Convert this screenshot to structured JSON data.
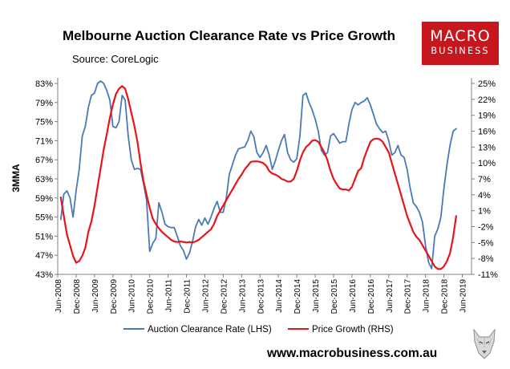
{
  "chart_data": {
    "type": "line",
    "title": "Melbourne Auction Clearance Rate vs Price Growth",
    "subtitle": "Source: CoreLogic",
    "ylabel_left": "3MMA",
    "left_axis": {
      "ylim": [
        43,
        85
      ],
      "ticks": [
        "83%",
        "79%",
        "75%",
        "71%",
        "67%",
        "63%",
        "59%",
        "55%",
        "51%",
        "47%",
        "43%"
      ],
      "tick_values": [
        83,
        79,
        75,
        71,
        67,
        63,
        59,
        55,
        51,
        47,
        43
      ]
    },
    "right_axis": {
      "ylim": [
        -11,
        27
      ],
      "ticks": [
        "25%",
        "22%",
        "19%",
        "16%",
        "13%",
        "10%",
        "7%",
        "4%",
        "1%",
        "-2%",
        "-5%",
        "-8%",
        "-11%"
      ],
      "tick_values": [
        25,
        22,
        19,
        16,
        13,
        10,
        7,
        4,
        1,
        -2,
        -5,
        -8,
        -11
      ]
    },
    "x_ticks": [
      "Jun-2008",
      "Dec-2008",
      "Jun-2009",
      "Dec-2009",
      "Jun-2010",
      "Dec-2010",
      "Jun-2011",
      "Dec-2011",
      "Jun-2012",
      "Dec-2012",
      "Jun-2013",
      "Dec-2013",
      "Jun-2014",
      "Dec-2014",
      "Jun-2015",
      "Dec-2015",
      "Jun-2016",
      "Dec-2016",
      "Jun-2017",
      "Dec-2017",
      "Jun-2018",
      "Dec-2018",
      "Jun-2019"
    ],
    "series": [
      {
        "name": "Auction Clearance Rate (LHS)",
        "axis": "left",
        "color": "#4a7ab5",
        "points": [
          [
            1,
            54.5
          ],
          [
            2,
            59.8
          ],
          [
            3,
            60.5
          ],
          [
            4,
            59.0
          ],
          [
            5,
            55.0
          ],
          [
            6,
            60.5
          ],
          [
            7,
            65.0
          ],
          [
            8,
            72.0
          ],
          [
            9,
            74.0
          ],
          [
            10,
            78.0
          ],
          [
            11,
            80.5
          ],
          [
            12,
            81.0
          ],
          [
            13,
            83.0
          ],
          [
            14,
            83.5
          ],
          [
            15,
            83.0
          ],
          [
            16,
            81.5
          ],
          [
            17,
            79.5
          ],
          [
            18,
            74.0
          ],
          [
            19,
            73.7
          ],
          [
            20,
            75.0
          ],
          [
            21,
            80.5
          ],
          [
            22,
            79.5
          ],
          [
            23,
            72.0
          ],
          [
            24,
            67.0
          ],
          [
            25,
            65.0
          ],
          [
            26,
            65.2
          ],
          [
            27,
            65.0
          ],
          [
            28,
            62.0
          ],
          [
            29,
            58.5
          ],
          [
            30,
            47.8
          ],
          [
            31,
            49.5
          ],
          [
            32,
            50.5
          ],
          [
            33,
            58.0
          ],
          [
            34,
            56.0
          ],
          [
            35,
            53.5
          ],
          [
            36,
            53.0
          ],
          [
            37,
            52.8
          ],
          [
            38,
            52.8
          ],
          [
            39,
            51.0
          ],
          [
            40,
            49.0
          ],
          [
            41,
            48.0
          ],
          [
            42,
            46.2
          ],
          [
            43,
            47.5
          ],
          [
            44,
            50.0
          ],
          [
            45,
            53.0
          ],
          [
            46,
            54.5
          ],
          [
            47,
            53.3
          ],
          [
            48,
            54.8
          ],
          [
            49,
            53.5
          ],
          [
            50,
            55.0
          ],
          [
            51,
            56.8
          ],
          [
            52,
            58.3
          ],
          [
            53,
            56.0
          ],
          [
            54,
            56.0
          ],
          [
            55,
            59.0
          ],
          [
            56,
            64.0
          ],
          [
            57,
            66.0
          ],
          [
            58,
            68.0
          ],
          [
            59,
            69.3
          ],
          [
            60,
            69.5
          ],
          [
            61,
            69.7
          ],
          [
            62,
            71.0
          ],
          [
            63,
            73.0
          ],
          [
            64,
            71.8
          ],
          [
            65,
            68.5
          ],
          [
            66,
            67.5
          ],
          [
            67,
            68.5
          ],
          [
            68,
            70.0
          ],
          [
            69,
            68.0
          ],
          [
            70,
            65.0
          ],
          [
            71,
            66.8
          ],
          [
            72,
            69.0
          ],
          [
            73,
            71.0
          ],
          [
            74,
            72.3
          ],
          [
            75,
            68.5
          ],
          [
            76,
            67.0
          ],
          [
            77,
            66.5
          ],
          [
            78,
            67.2
          ],
          [
            79,
            72.0
          ],
          [
            80,
            80.5
          ],
          [
            81,
            81.0
          ],
          [
            82,
            79.0
          ],
          [
            83,
            77.5
          ],
          [
            84,
            75.5
          ],
          [
            85,
            73.0
          ],
          [
            86,
            69.0
          ],
          [
            87,
            68.0
          ],
          [
            88,
            68.5
          ],
          [
            89,
            72.0
          ],
          [
            90,
            72.5
          ],
          [
            91,
            71.5
          ],
          [
            92,
            70.5
          ],
          [
            93,
            70.8
          ],
          [
            94,
            70.8
          ],
          [
            95,
            74.5
          ],
          [
            96,
            77.5
          ],
          [
            97,
            79.0
          ],
          [
            98,
            78.5
          ],
          [
            99,
            79.0
          ],
          [
            100,
            79.3
          ],
          [
            101,
            80.0
          ],
          [
            102,
            78.5
          ],
          [
            103,
            76.5
          ],
          [
            104,
            74.5
          ],
          [
            105,
            73.5
          ],
          [
            106,
            72.7
          ],
          [
            107,
            73.0
          ],
          [
            108,
            71.0
          ],
          [
            109,
            68.0
          ],
          [
            110,
            68.5
          ],
          [
            111,
            70.0
          ],
          [
            112,
            68.0
          ],
          [
            113,
            67.5
          ],
          [
            114,
            65.0
          ],
          [
            115,
            61.0
          ],
          [
            116,
            58.0
          ],
          [
            117,
            57.2
          ],
          [
            118,
            56.0
          ],
          [
            119,
            54.0
          ],
          [
            120,
            49.0
          ],
          [
            121,
            45.5
          ],
          [
            122,
            44.2
          ],
          [
            123,
            51.0
          ],
          [
            124,
            52.5
          ],
          [
            125,
            55.0
          ],
          [
            126,
            61.0
          ],
          [
            127,
            66.0
          ],
          [
            128,
            70.0
          ],
          [
            129,
            73.0
          ],
          [
            130,
            73.5
          ]
        ]
      },
      {
        "name": "Price Growth (RHS)",
        "axis": "right",
        "color": "#e8141a",
        "points": [
          [
            1,
            3.5
          ],
          [
            2,
            0.0
          ],
          [
            3,
            -3.5
          ],
          [
            4,
            -5.5
          ],
          [
            5,
            -7.5
          ],
          [
            6,
            -8.8
          ],
          [
            7,
            -8.5
          ],
          [
            8,
            -7.5
          ],
          [
            9,
            -6.0
          ],
          [
            10,
            -3.0
          ],
          [
            11,
            -1.0
          ],
          [
            12,
            2.0
          ],
          [
            13,
            5.5
          ],
          [
            14,
            9.0
          ],
          [
            15,
            12.5
          ],
          [
            16,
            15.5
          ],
          [
            17,
            18.5
          ],
          [
            18,
            21.0
          ],
          [
            19,
            23.0
          ],
          [
            20,
            24.0
          ],
          [
            21,
            24.5
          ],
          [
            22,
            24.0
          ],
          [
            23,
            22.0
          ],
          [
            24,
            19.5
          ],
          [
            25,
            17.0
          ],
          [
            26,
            14.0
          ],
          [
            27,
            10.0
          ],
          [
            28,
            6.5
          ],
          [
            29,
            4.0
          ],
          [
            30,
            1.5
          ],
          [
            31,
            -0.5
          ],
          [
            32,
            -1.5
          ],
          [
            33,
            -2.3
          ],
          [
            34,
            -3.0
          ],
          [
            35,
            -3.5
          ],
          [
            36,
            -4.0
          ],
          [
            37,
            -4.5
          ],
          [
            38,
            -4.8
          ],
          [
            39,
            -4.9
          ],
          [
            40,
            -4.8
          ],
          [
            41,
            -4.9
          ],
          [
            42,
            -5.0
          ],
          [
            43,
            -4.9
          ],
          [
            44,
            -5.0
          ],
          [
            45,
            -4.8
          ],
          [
            46,
            -4.5
          ],
          [
            47,
            -4.0
          ],
          [
            48,
            -3.5
          ],
          [
            49,
            -3.0
          ],
          [
            50,
            -2.5
          ],
          [
            51,
            -1.5
          ],
          [
            52,
            0.0
          ],
          [
            53,
            1.0
          ],
          [
            54,
            2.0
          ],
          [
            55,
            3.0
          ],
          [
            56,
            4.0
          ],
          [
            57,
            5.0
          ],
          [
            58,
            6.0
          ],
          [
            59,
            7.0
          ],
          [
            60,
            7.8
          ],
          [
            61,
            8.8
          ],
          [
            62,
            9.5
          ],
          [
            63,
            10.2
          ],
          [
            64,
            10.3
          ],
          [
            65,
            10.3
          ],
          [
            66,
            10.2
          ],
          [
            67,
            10.0
          ],
          [
            68,
            9.5
          ],
          [
            69,
            8.5
          ],
          [
            70,
            8.0
          ],
          [
            71,
            7.8
          ],
          [
            72,
            7.5
          ],
          [
            73,
            7.0
          ],
          [
            74,
            6.8
          ],
          [
            75,
            6.5
          ],
          [
            76,
            6.5
          ],
          [
            77,
            7.0
          ],
          [
            78,
            8.5
          ],
          [
            79,
            10.5
          ],
          [
            80,
            12.0
          ],
          [
            81,
            13.0
          ],
          [
            82,
            13.5
          ],
          [
            83,
            14.2
          ],
          [
            84,
            14.3
          ],
          [
            85,
            14.0
          ],
          [
            86,
            13.0
          ],
          [
            87,
            12.0
          ],
          [
            88,
            10.5
          ],
          [
            89,
            8.5
          ],
          [
            90,
            7.0
          ],
          [
            91,
            6.0
          ],
          [
            92,
            5.2
          ],
          [
            93,
            5.0
          ],
          [
            94,
            5.0
          ],
          [
            95,
            4.8
          ],
          [
            96,
            5.5
          ],
          [
            97,
            7.0
          ],
          [
            98,
            8.5
          ],
          [
            99,
            9.0
          ],
          [
            100,
            11.0
          ],
          [
            101,
            12.5
          ],
          [
            102,
            14.0
          ],
          [
            103,
            14.5
          ],
          [
            104,
            14.6
          ],
          [
            105,
            14.5
          ],
          [
            106,
            14.0
          ],
          [
            107,
            13.0
          ],
          [
            108,
            12.0
          ],
          [
            109,
            10.0
          ],
          [
            110,
            8.0
          ],
          [
            111,
            6.0
          ],
          [
            112,
            4.0
          ],
          [
            113,
            2.0
          ],
          [
            114,
            0.0
          ],
          [
            115,
            -1.5
          ],
          [
            116,
            -3.0
          ],
          [
            117,
            -3.9
          ],
          [
            118,
            -4.5
          ],
          [
            119,
            -5.5
          ],
          [
            120,
            -6.5
          ],
          [
            121,
            -7.5
          ],
          [
            122,
            -8.5
          ],
          [
            123,
            -9.5
          ],
          [
            124,
            -10.0
          ],
          [
            125,
            -10.0
          ],
          [
            126,
            -9.5
          ],
          [
            127,
            -8.5
          ],
          [
            128,
            -7.0
          ],
          [
            129,
            -4.0
          ],
          [
            130,
            0.0
          ]
        ]
      }
    ],
    "legend": {
      "position": "bottom",
      "entries": [
        "Auction Clearance Rate (LHS)",
        "Price Growth (RHS)"
      ]
    },
    "grid": false
  },
  "brand": {
    "logo_line1": "MACRO",
    "logo_line2": "BUSINESS",
    "logo_color": "#c8161e"
  },
  "footer": {
    "url": "www.macrobusiness.com.au"
  }
}
